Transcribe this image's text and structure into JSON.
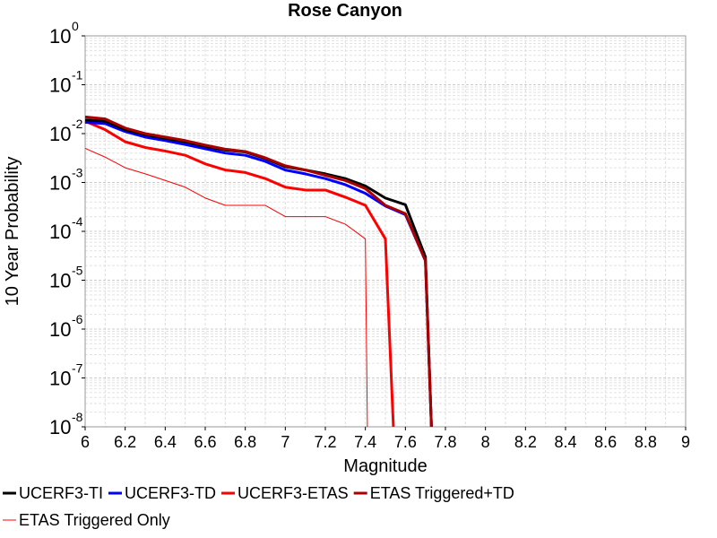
{
  "chart_data": {
    "type": "line",
    "title": "Rose Canyon",
    "xlabel": "Magnitude",
    "ylabel": "10 Year Probability",
    "xlim": [
      6,
      9
    ],
    "ylim": [
      1e-08,
      1
    ],
    "yscale": "log",
    "grid": true,
    "legend_position": "bottom",
    "xticks": [
      "6",
      "6.2",
      "6.4",
      "6.6",
      "6.8",
      "7",
      "7.2",
      "7.4",
      "7.6",
      "7.8",
      "8",
      "8.2",
      "8.4",
      "8.6",
      "8.8",
      "9"
    ],
    "yticks": [
      {
        "base": "10",
        "exp": "0"
      },
      {
        "base": "10",
        "exp": "-1"
      },
      {
        "base": "10",
        "exp": "-2"
      },
      {
        "base": "10",
        "exp": "-3"
      },
      {
        "base": "10",
        "exp": "-4"
      },
      {
        "base": "10",
        "exp": "-5"
      },
      {
        "base": "10",
        "exp": "-6"
      },
      {
        "base": "10",
        "exp": "-7"
      },
      {
        "base": "10",
        "exp": "-8"
      }
    ],
    "series": [
      {
        "name": "ETAS Triggered Only",
        "color": "#ff0000",
        "width": 1,
        "x": [
          6.0,
          6.1,
          6.2,
          6.3,
          6.4,
          6.5,
          6.6,
          6.7,
          6.8,
          6.9,
          7.0,
          7.1,
          7.2,
          7.3,
          7.4,
          7.41
        ],
        "y": [
          0.005,
          0.0033,
          0.002,
          0.0015,
          0.0011,
          0.0008,
          0.00048,
          0.00034,
          0.00034,
          0.00034,
          0.0002,
          0.0002,
          0.0002,
          0.00014,
          7e-05,
          1e-08
        ]
      },
      {
        "name": "UCERF3-ETAS",
        "color": "#ff0000",
        "width": 3,
        "x": [
          6.0,
          6.1,
          6.2,
          6.3,
          6.4,
          6.5,
          6.6,
          6.7,
          6.8,
          6.9,
          7.0,
          7.1,
          7.2,
          7.3,
          7.4,
          7.5,
          7.54
        ],
        "y": [
          0.018,
          0.012,
          0.0068,
          0.0052,
          0.0044,
          0.0036,
          0.0024,
          0.0018,
          0.0016,
          0.0012,
          0.0008,
          0.0007,
          0.0007,
          0.0005,
          0.00034,
          7e-05,
          1e-08
        ]
      },
      {
        "name": "UCERF3-TD",
        "color": "#0000ff",
        "width": 3,
        "x": [
          6.0,
          6.1,
          6.2,
          6.3,
          6.4,
          6.5,
          6.6,
          6.7,
          6.8,
          6.9,
          7.0,
          7.1,
          7.2,
          7.3,
          7.4,
          7.5,
          7.6,
          7.7,
          7.73
        ],
        "y": [
          0.017,
          0.016,
          0.011,
          0.0085,
          0.0072,
          0.006,
          0.0049,
          0.004,
          0.0036,
          0.0027,
          0.0018,
          0.0015,
          0.0012,
          0.0009,
          0.0006,
          0.00033,
          0.00022,
          2.5e-05,
          1e-08
        ]
      },
      {
        "name": "UCERF3-TI",
        "color": "#000000",
        "width": 3,
        "x": [
          6.0,
          6.1,
          6.2,
          6.3,
          6.4,
          6.5,
          6.6,
          6.7,
          6.8,
          6.9,
          7.0,
          7.1,
          7.2,
          7.3,
          7.4,
          7.5,
          7.6,
          7.7,
          7.73
        ],
        "y": [
          0.019,
          0.018,
          0.012,
          0.0095,
          0.008,
          0.0068,
          0.0055,
          0.0046,
          0.0042,
          0.0031,
          0.0021,
          0.0018,
          0.0015,
          0.0012,
          0.00085,
          0.00048,
          0.00035,
          3e-05,
          1e-08
        ]
      },
      {
        "name": "ETAS Triggered+TD",
        "color": "#aa0000",
        "width": 3,
        "x": [
          6.0,
          6.1,
          6.2,
          6.3,
          6.4,
          6.5,
          6.6,
          6.7,
          6.8,
          6.9,
          7.0,
          7.1,
          7.2,
          7.3,
          7.4,
          7.5,
          7.6,
          7.7,
          7.73
        ],
        "y": [
          0.022,
          0.02,
          0.013,
          0.01,
          0.0085,
          0.0072,
          0.0058,
          0.0048,
          0.0043,
          0.0032,
          0.0022,
          0.0018,
          0.0014,
          0.0011,
          0.00075,
          0.00034,
          0.00023,
          2.5e-05,
          1e-08
        ]
      }
    ],
    "legend": [
      {
        "name": "UCERF3-TI",
        "color": "#000000",
        "width": 3
      },
      {
        "name": "UCERF3-TD",
        "color": "#0000ff",
        "width": 3
      },
      {
        "name": "UCERF3-ETAS",
        "color": "#ff0000",
        "width": 3
      },
      {
        "name": "ETAS Triggered+TD",
        "color": "#aa0000",
        "width": 3
      },
      {
        "name": "ETAS Triggered Only",
        "color": "#ff0000",
        "width": 1
      }
    ]
  }
}
